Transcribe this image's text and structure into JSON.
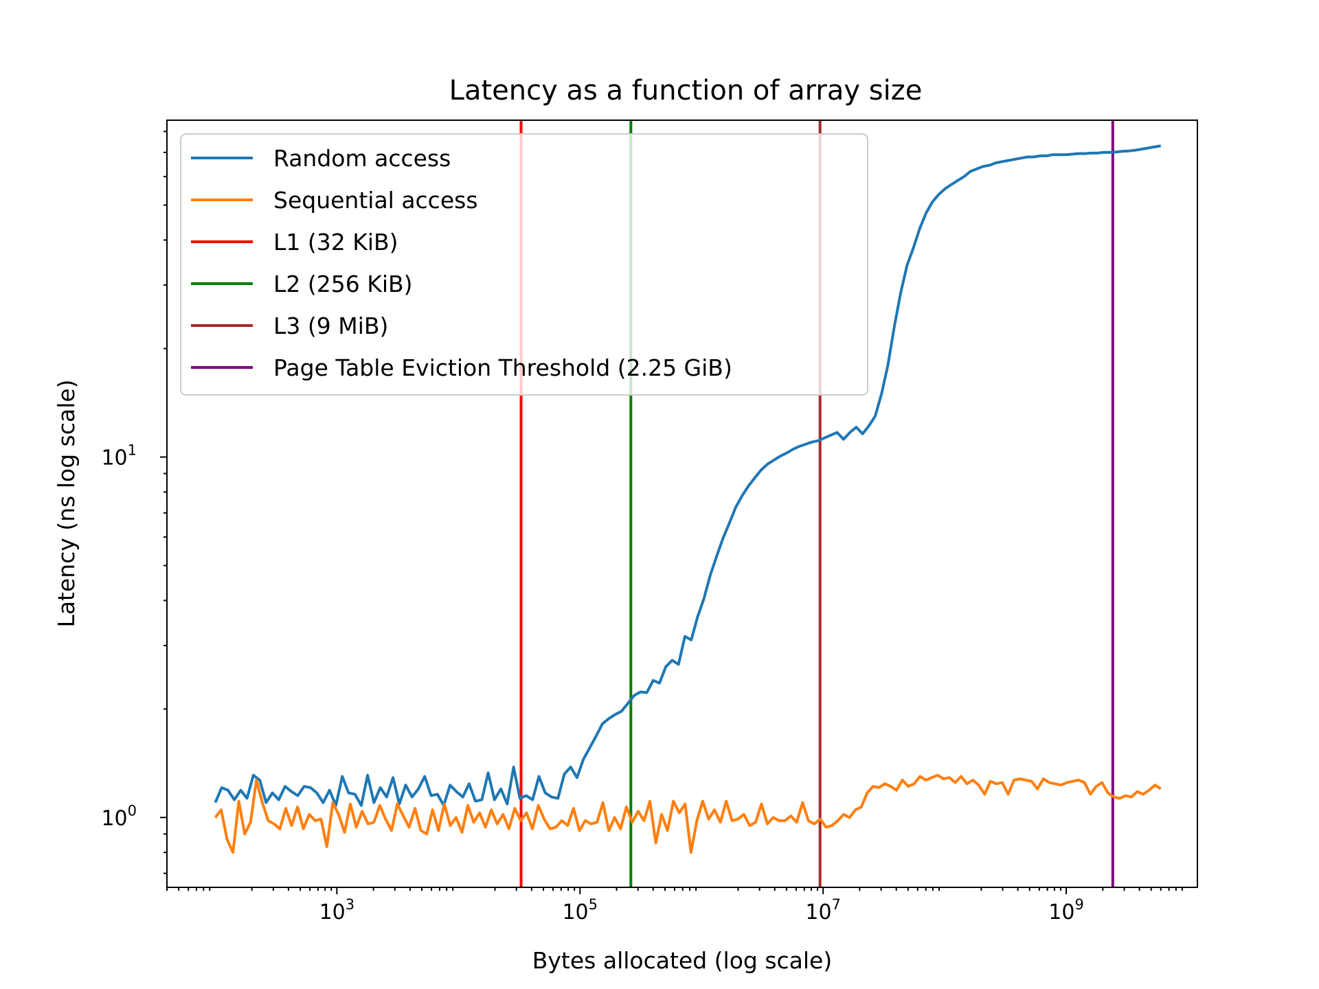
{
  "chart_data": {
    "type": "line",
    "title": "Latency as a function of array size",
    "xlabel": "Bytes allocated (log scale)",
    "ylabel": "Latency (ns log scale)",
    "xscale": "log",
    "yscale": "log",
    "xlim": [
      40,
      12000000000
    ],
    "ylim": [
      0.64,
      86
    ],
    "grid": false,
    "legend_position": "top-left",
    "x_ticks": [
      {
        "value": 1000,
        "base": "10",
        "exp": "3"
      },
      {
        "value": 100000,
        "base": "10",
        "exp": "5"
      },
      {
        "value": 10000000,
        "base": "10",
        "exp": "7"
      },
      {
        "value": 1000000000,
        "base": "10",
        "exp": "9"
      }
    ],
    "y_ticks": [
      {
        "value": 1,
        "base": "10",
        "exp": "0"
      },
      {
        "value": 10,
        "base": "10",
        "exp": "1"
      }
    ],
    "series": [
      {
        "name": "Random access",
        "color": "#1f77b4",
        "x_start": 100,
        "x_end": 6000000000,
        "values": [
          1.1,
          1.21,
          1.19,
          1.12,
          1.19,
          1.13,
          1.31,
          1.27,
          1.1,
          1.17,
          1.12,
          1.22,
          1.18,
          1.15,
          1.22,
          1.21,
          1.17,
          1.1,
          1.19,
          1.08,
          1.3,
          1.17,
          1.16,
          1.08,
          1.31,
          1.1,
          1.21,
          1.14,
          1.29,
          1.09,
          1.23,
          1.14,
          1.2,
          1.3,
          1.15,
          1.16,
          1.08,
          1.23,
          1.18,
          1.14,
          1.24,
          1.11,
          1.12,
          1.33,
          1.12,
          1.2,
          1.09,
          1.38,
          1.13,
          1.15,
          1.12,
          1.3,
          1.17,
          1.14,
          1.13,
          1.32,
          1.38,
          1.29,
          1.45,
          1.56,
          1.68,
          1.82,
          1.88,
          1.93,
          1.97,
          2.07,
          2.18,
          2.23,
          2.22,
          2.4,
          2.36,
          2.62,
          2.73,
          2.66,
          3.18,
          3.11,
          3.6,
          4.05,
          4.7,
          5.3,
          5.95,
          6.55,
          7.25,
          7.8,
          8.3,
          8.75,
          9.2,
          9.55,
          9.8,
          10.05,
          10.25,
          10.5,
          10.7,
          10.85,
          11.0,
          11.1,
          11.3,
          11.5,
          11.7,
          11.2,
          11.7,
          12.1,
          11.6,
          12.2,
          13.0,
          15.0,
          18.0,
          23.0,
          28.5,
          34.0,
          38.0,
          43.0,
          47.5,
          51.0,
          53.5,
          55.5,
          57.0,
          58.5,
          60.0,
          62.0,
          63.0,
          64.0,
          64.5,
          65.5,
          66.0,
          66.5,
          67.0,
          67.5,
          68.0,
          68.0,
          68.5,
          68.5,
          69.0,
          69.0,
          69.0,
          69.2,
          69.5,
          69.5,
          69.7,
          69.7,
          70.0,
          70.0,
          70.2,
          70.5,
          70.7,
          71.0,
          71.5,
          72.0,
          72.5,
          73.0
        ]
      },
      {
        "name": "Sequential access",
        "color": "#ff7f0e",
        "x_start": 100,
        "x_end": 6000000000,
        "values": [
          1.0,
          1.05,
          0.87,
          0.8,
          1.11,
          0.9,
          0.97,
          1.27,
          1.1,
          0.98,
          0.96,
          0.93,
          1.06,
          0.95,
          1.07,
          0.93,
          1.02,
          0.98,
          0.99,
          0.83,
          1.1,
          1.02,
          0.91,
          1.09,
          0.94,
          1.04,
          0.96,
          0.97,
          1.08,
          0.99,
          0.92,
          1.09,
          1.01,
          0.94,
          1.06,
          0.92,
          0.9,
          1.05,
          0.92,
          1.09,
          0.95,
          1.0,
          0.91,
          1.08,
          0.97,
          1.03,
          0.94,
          1.05,
          0.96,
          1.02,
          0.93,
          1.06,
          0.98,
          1.03,
          0.93,
          1.08,
          0.99,
          0.93,
          0.94,
          0.98,
          0.95,
          1.06,
          0.92,
          0.98,
          0.96,
          0.97,
          1.1,
          0.92,
          1.0,
          0.93,
          1.07,
          0.97,
          1.04,
          0.98,
          1.11,
          0.85,
          1.02,
          0.92,
          1.11,
          1.03,
          1.09,
          0.8,
          0.98,
          1.11,
          0.99,
          1.05,
          0.97,
          1.11,
          0.98,
          0.99,
          1.02,
          0.95,
          0.97,
          1.09,
          0.96,
          1.0,
          0.98,
          0.98,
          1.01,
          0.97,
          1.1,
          0.98,
          0.96,
          0.99,
          0.94,
          0.95,
          0.98,
          1.02,
          1.0,
          1.05,
          1.07,
          1.17,
          1.22,
          1.21,
          1.24,
          1.22,
          1.19,
          1.27,
          1.22,
          1.24,
          1.3,
          1.27,
          1.29,
          1.31,
          1.28,
          1.29,
          1.25,
          1.3,
          1.24,
          1.27,
          1.23,
          1.16,
          1.26,
          1.24,
          1.25,
          1.16,
          1.27,
          1.28,
          1.27,
          1.26,
          1.2,
          1.28,
          1.25,
          1.24,
          1.23,
          1.25,
          1.26,
          1.27,
          1.25,
          1.16,
          1.22,
          1.25,
          1.17,
          1.14,
          1.13,
          1.15,
          1.14,
          1.18,
          1.16,
          1.19,
          1.23,
          1.2
        ]
      }
    ],
    "reference_lines": [
      {
        "name": "L1 (32 KiB)",
        "x": 32768,
        "color": "#ff0000"
      },
      {
        "name": "L2 (256 KiB)",
        "x": 262144,
        "color": "#008000"
      },
      {
        "name": "L3 (9 MiB)",
        "x": 9437184,
        "color": "#a52a2a"
      },
      {
        "name": "Page Table Eviction Threshold (2.25 GiB)",
        "x": 2415919104,
        "color": "#800080"
      }
    ]
  }
}
